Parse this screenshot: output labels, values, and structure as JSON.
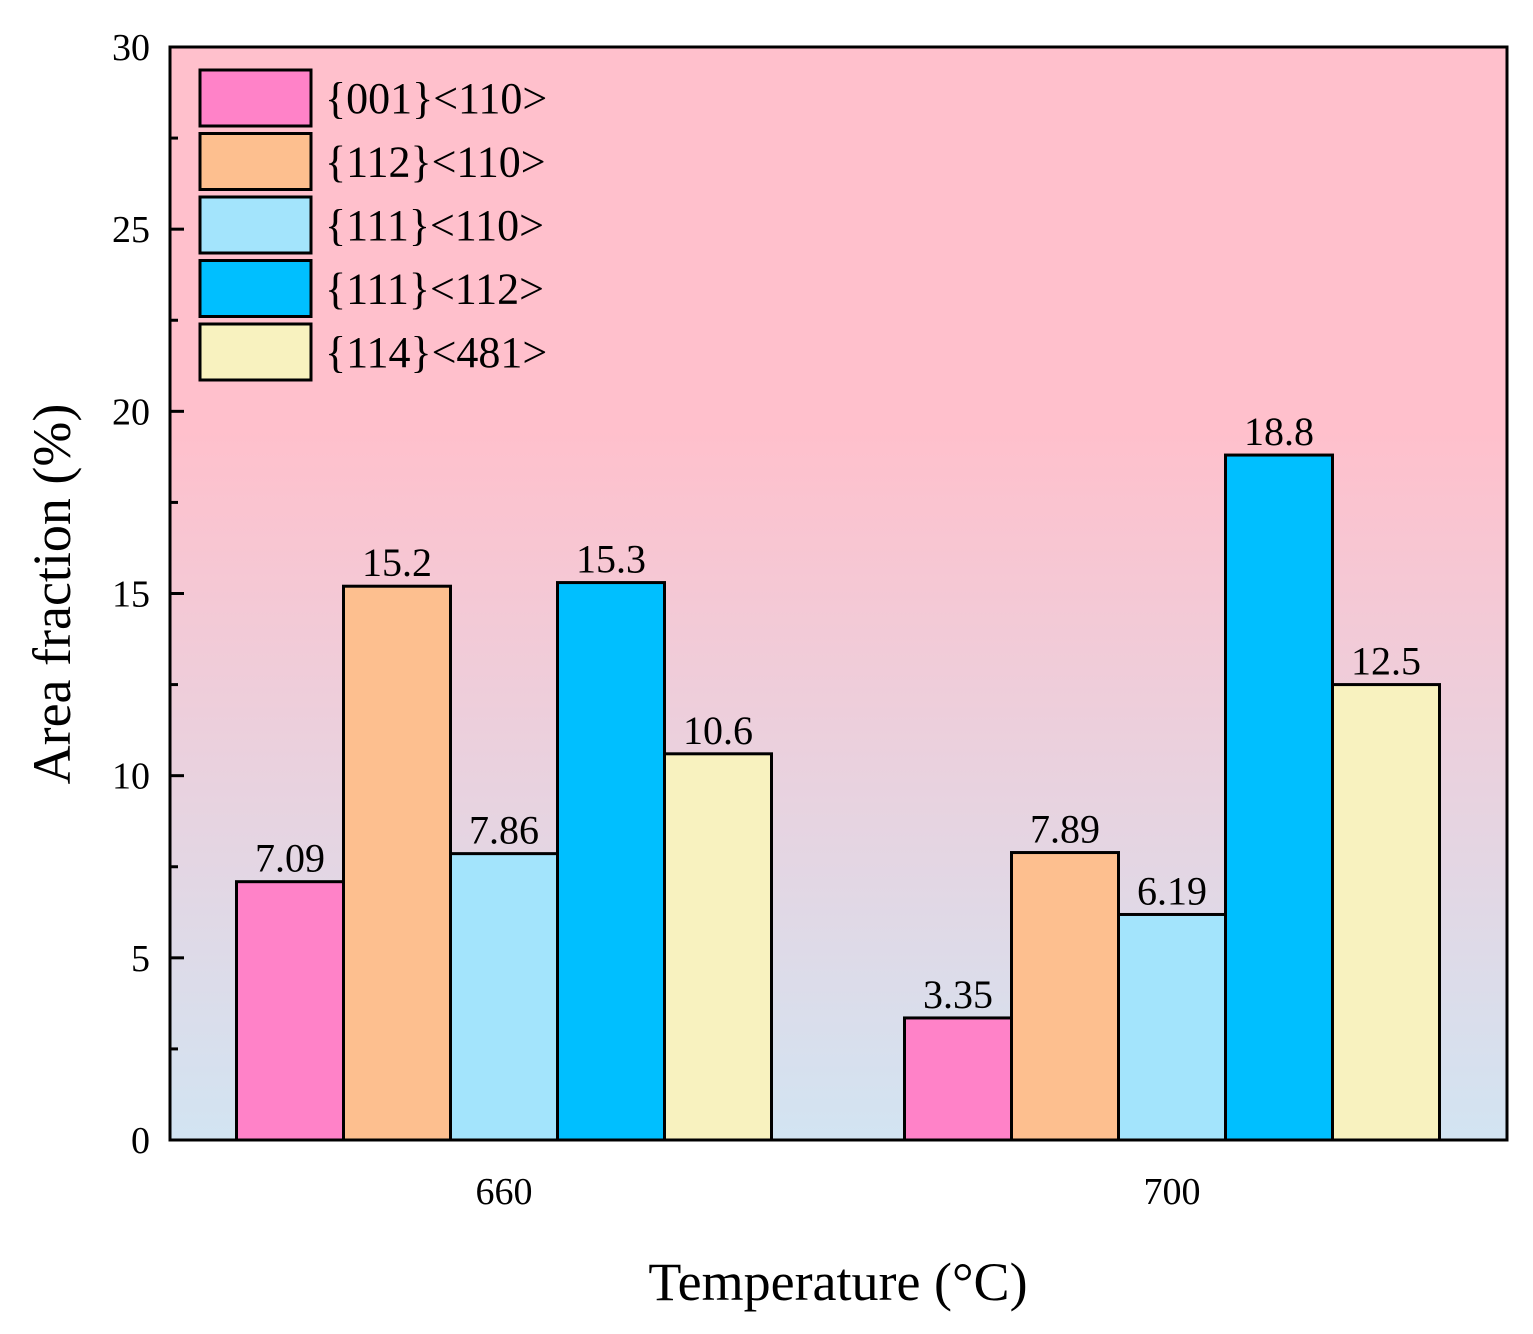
{
  "chart_data": {
    "type": "bar",
    "title": "",
    "xlabel": "Temperature (°C)",
    "ylabel": "Area fraction (%)",
    "categories": [
      "660",
      "700"
    ],
    "ylim": [
      0,
      30
    ],
    "yticks": [
      0,
      5,
      10,
      15,
      20,
      25,
      30
    ],
    "ytick_labels": [
      "0",
      "5",
      "10",
      "15",
      "20",
      "25",
      "30"
    ],
    "grid": false,
    "legend_position": "top-left",
    "background_gradient": [
      "#ffc0cc",
      "#d2e4f2"
    ],
    "series": [
      {
        "name": "{001}<110>",
        "color": "#ff82c8",
        "values": [
          7.09,
          3.35
        ],
        "labels": [
          "7.09",
          "3.35"
        ]
      },
      {
        "name": "{112}<110>",
        "color": "#fdbf8f",
        "values": [
          15.2,
          7.89
        ],
        "labels": [
          "15.2",
          "7.89"
        ]
      },
      {
        "name": "{111}<110>",
        "color": "#a3e4fc",
        "values": [
          7.86,
          6.19
        ],
        "labels": [
          "7.86",
          "6.19"
        ]
      },
      {
        "name": "{111}<112>",
        "color": "#00bfff",
        "values": [
          15.3,
          18.8
        ],
        "labels": [
          "15.3",
          "18.8"
        ]
      },
      {
        "name": "{114}<481>",
        "color": "#f8f2bf",
        "values": [
          10.6,
          12.5
        ],
        "labels": [
          "10.6",
          "12.5"
        ]
      }
    ]
  }
}
